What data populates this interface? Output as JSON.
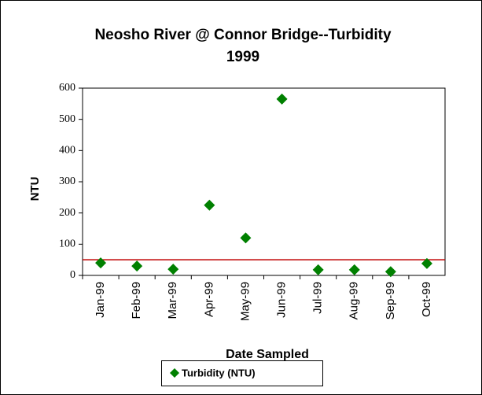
{
  "chart_data": {
    "type": "scatter",
    "title": "Neosho River @ Connor Bridge--Turbidity",
    "subtitle": "1999",
    "y_label": "NTU",
    "x_label": "Date Sampled",
    "categories": [
      "Jan-99",
      "Feb-99",
      "Mar-99",
      "Apr-99",
      "May-99",
      "Jun-99",
      "Jul-99",
      "Aug-99",
      "Sep-99",
      "Oct-99"
    ],
    "series": [
      {
        "name": "Turbidity (NTU)",
        "color": "#008000",
        "values": [
          40,
          30,
          20,
          225,
          120,
          565,
          18,
          18,
          12,
          38
        ]
      }
    ],
    "reference_line": {
      "value": 50,
      "color": "#c00000"
    },
    "ylim": [
      0,
      600
    ],
    "yticks": [
      0,
      100,
      200,
      300,
      400,
      500,
      600
    ],
    "legend": "bottom"
  }
}
